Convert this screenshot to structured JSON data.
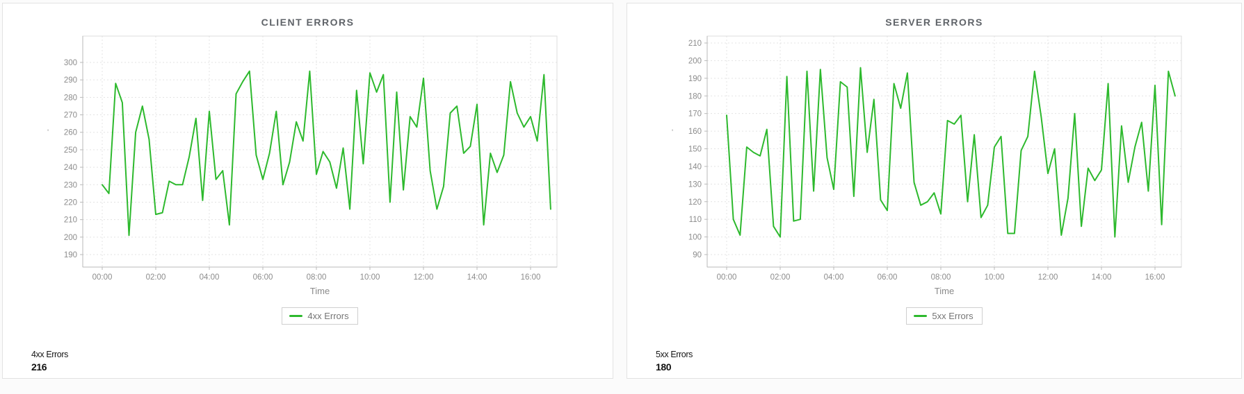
{
  "page": {
    "background": "#fbfbfb",
    "accent_green": "#2db92d"
  },
  "chart_data": [
    {
      "type": "line",
      "title": "CLIENT ERRORS",
      "legend": "4xx Errors",
      "series_name": "4xx Errors",
      "xlabel": "Time",
      "ylabel": "",
      "y_axis_mark": "'",
      "line_color": "#2db92d",
      "ylim": [
        190,
        300
      ],
      "y_tick_step": 10,
      "x_ticks": [
        "00:00",
        "02:00",
        "04:00",
        "06:00",
        "08:00",
        "10:00",
        "12:00",
        "14:00",
        "16:00"
      ],
      "x_start": "00:00",
      "x_step_minutes": 15,
      "grid": true,
      "legend_position": "bottom",
      "values": [
        230,
        225,
        288,
        277,
        201,
        260,
        275,
        256,
        213,
        214,
        232,
        230,
        230,
        246,
        268,
        221,
        272,
        233,
        238,
        207,
        282,
        289,
        295,
        247,
        233,
        248,
        272,
        230,
        243,
        266,
        255,
        295,
        236,
        249,
        243,
        228,
        251,
        216,
        284,
        242,
        294,
        283,
        293,
        220,
        283,
        227,
        269,
        263,
        291,
        238,
        216,
        229,
        271,
        275,
        248,
        252,
        276,
        207,
        248,
        237,
        247,
        289,
        271,
        263,
        269,
        255,
        293,
        216
      ]
    },
    {
      "type": "line",
      "title": "SERVER ERRORS",
      "legend": "5xx Errors",
      "series_name": "5xx Errors",
      "xlabel": "Time",
      "ylabel": "",
      "y_axis_mark": "'",
      "line_color": "#2db92d",
      "ylim": [
        90,
        210
      ],
      "y_tick_step": 10,
      "x_ticks": [
        "00:00",
        "02:00",
        "04:00",
        "06:00",
        "08:00",
        "10:00",
        "12:00",
        "14:00",
        "16:00"
      ],
      "x_start": "00:00",
      "x_step_minutes": 15,
      "grid": true,
      "legend_position": "bottom",
      "values": [
        169,
        110,
        101,
        151,
        148,
        146,
        161,
        106,
        100,
        191,
        109,
        110,
        194,
        126,
        195,
        145,
        127,
        188,
        185,
        123,
        196,
        148,
        178,
        121,
        115,
        187,
        173,
        193,
        131,
        118,
        120,
        125,
        113,
        166,
        164,
        169,
        120,
        158,
        111,
        118,
        151,
        157,
        102,
        102,
        149,
        157,
        194,
        168,
        136,
        150,
        101,
        122,
        170,
        106,
        139,
        132,
        138,
        187,
        100,
        163,
        131,
        151,
        165,
        126,
        186,
        107,
        194,
        180
      ]
    }
  ],
  "cards": [
    {
      "summary_label": "4xx Errors",
      "summary_value": "216"
    },
    {
      "summary_label": "5xx Errors",
      "summary_value": "180"
    }
  ]
}
